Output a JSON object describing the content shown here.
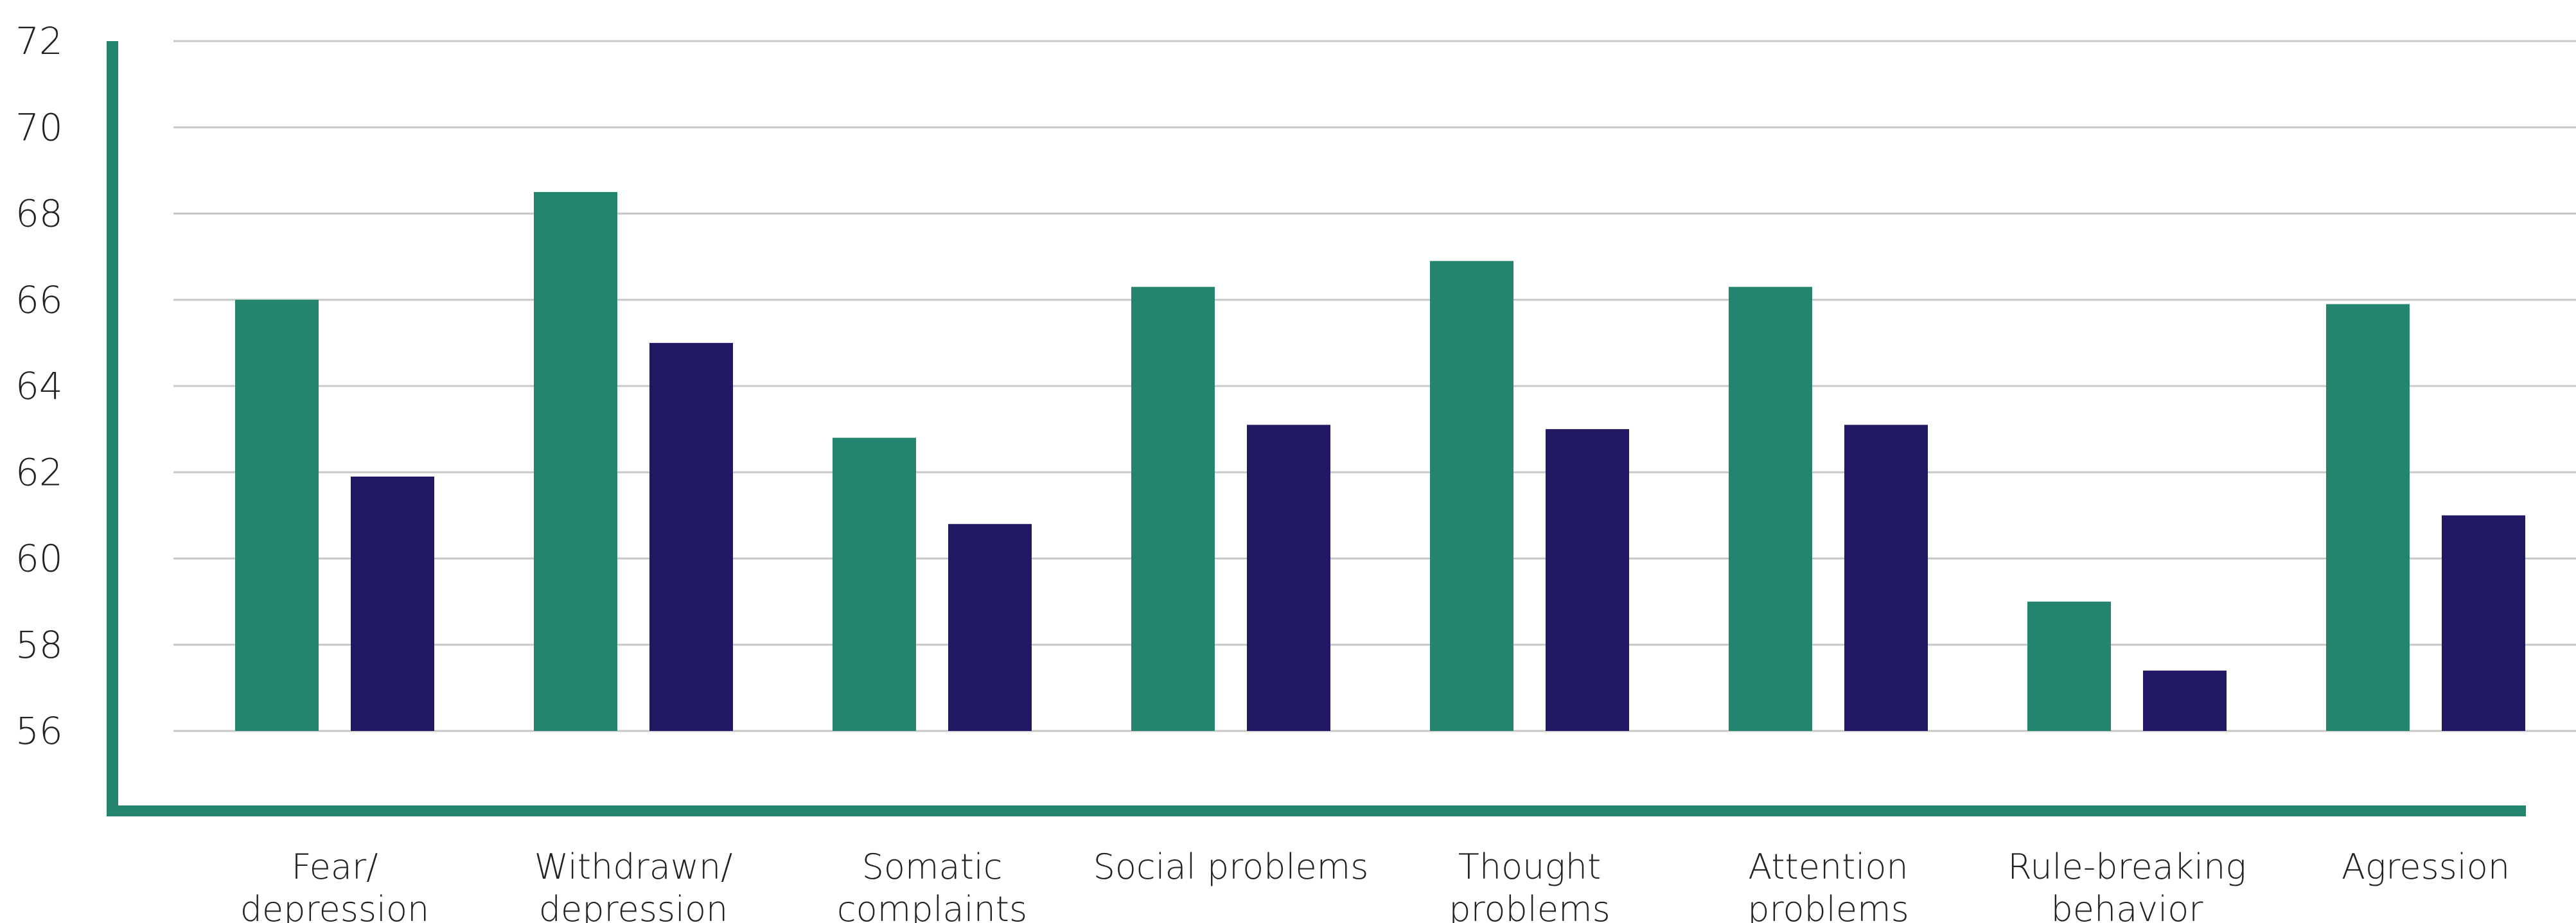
{
  "chart_data": {
    "type": "bar",
    "title": "",
    "xlabel": "",
    "ylabel": "",
    "categories": [
      [
        "Fear/",
        "depression"
      ],
      [
        "Withdrawn/",
        "depression"
      ],
      [
        "Somatic",
        "complaints"
      ],
      [
        "Social problems"
      ],
      [
        "Thought",
        "problems"
      ],
      [
        "Attention",
        "problems"
      ],
      [
        "Rule-breaking",
        "behavior"
      ],
      [
        "Agression"
      ]
    ],
    "series": [
      {
        "values": [
          66.0,
          68.5,
          62.8,
          66.3,
          66.9,
          66.3,
          59.0,
          65.9
        ]
      },
      {
        "values": [
          61.9,
          65.0,
          60.8,
          63.1,
          63.0,
          63.1,
          57.4,
          61.0
        ]
      }
    ],
    "colors": [
      "#23856d",
      "#201863"
    ],
    "axis_color": "#23856d",
    "grid_color": "#c8c8c8",
    "ylim": [
      56,
      72
    ],
    "yticks": [
      56,
      58,
      60,
      62,
      64,
      66,
      68,
      70,
      72
    ],
    "grid": true,
    "legend": "none"
  }
}
